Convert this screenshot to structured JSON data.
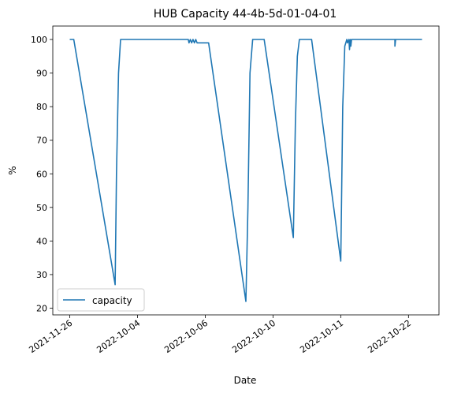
{
  "chart_data": {
    "type": "line",
    "title": "HUB Capacity 44-4b-5d-01-04-01",
    "xlabel": "Date",
    "ylabel": "%",
    "ylim": [
      18,
      104
    ],
    "yticks": [
      20,
      30,
      40,
      50,
      60,
      70,
      80,
      90,
      100
    ],
    "xticks": [
      "2021-11-26",
      "2022-10-04",
      "2022-10-06",
      "2022-10-10",
      "2022-10-11",
      "2022-10-22"
    ],
    "xlim": [
      -0.25,
      5.45
    ],
    "legend_position": "lower left",
    "grid": false,
    "series": [
      {
        "name": "capacity",
        "color": "#1f77b4",
        "x": [
          0.0,
          0.06,
          0.67,
          0.69,
          0.72,
          0.75,
          0.8,
          0.85,
          1.0,
          1.3,
          1.7,
          1.75,
          1.76,
          1.78,
          1.8,
          1.82,
          1.84,
          1.86,
          1.88,
          1.9,
          1.95,
          2.05,
          2.6,
          2.63,
          2.66,
          2.7,
          2.75,
          2.83,
          2.87,
          3.3,
          3.33,
          3.36,
          3.39,
          3.43,
          3.47,
          3.53,
          3.57,
          4.0,
          4.03,
          4.06,
          4.09,
          4.1,
          4.12,
          4.13,
          4.14,
          4.15,
          4.16,
          4.17,
          4.2,
          4.5,
          4.8,
          4.8,
          4.81,
          4.81,
          4.9,
          5.2
        ],
        "values": [
          100,
          100,
          27,
          60,
          90,
          100,
          100,
          100,
          100,
          100,
          100,
          100,
          99,
          100,
          99,
          100,
          99,
          100,
          99,
          99,
          99,
          99,
          22,
          50,
          90,
          100,
          100,
          100,
          100,
          41,
          75,
          95,
          100,
          100,
          100,
          100,
          100,
          34,
          80,
          98,
          100,
          99,
          100,
          97,
          100,
          98,
          100,
          100,
          100,
          100,
          100,
          98,
          100,
          100,
          100,
          100
        ]
      }
    ]
  }
}
